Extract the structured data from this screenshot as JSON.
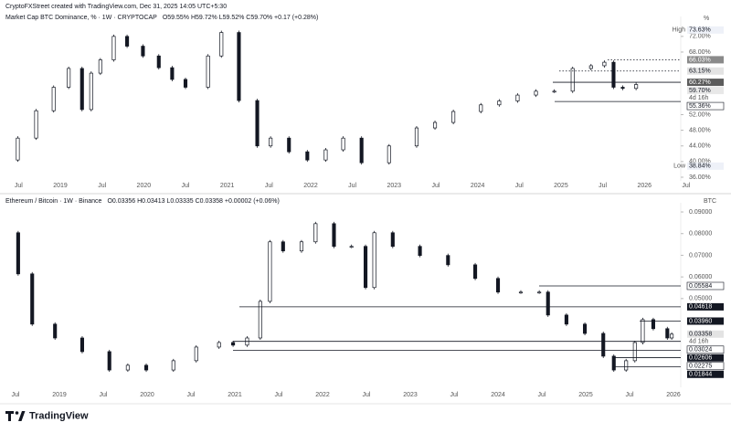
{
  "header": "CryptoFXStreet created with TradingView.com, Dec 31, 2025 14:05 UTC+5:30",
  "footer": "TradingView",
  "chart_data": [
    {
      "type": "candlestick",
      "title": "Market Cap BTC Dominance, % · 1W · CRYPTOCAP",
      "ohlc": "O59.55% H59.72% L59.52% C59.70% +0.17 (+0.28%)",
      "unit": "%",
      "x": [
        2018.33,
        2018.49,
        2018.71,
        2018.92,
        2019.1,
        2019.26,
        2019.37,
        2019.48,
        2019.64,
        2019.8,
        2019.99,
        2020.18,
        2020.34,
        2020.5,
        2020.77,
        2020.93,
        2021.14,
        2021.36,
        2021.52,
        2021.74,
        2021.96,
        2022.18,
        2022.39,
        2022.61,
        2022.94,
        2023.27,
        2023.49,
        2023.71,
        2024.04,
        2024.26,
        2024.48,
        2024.7,
        2024.92,
        2025.14,
        2025.36,
        2025.52,
        2025.63,
        2025.74,
        2025.9
      ],
      "values": [
        40.4,
        46,
        53,
        59,
        63.8,
        53.3,
        62.6,
        66,
        72,
        69.5,
        67,
        64,
        61,
        59,
        67,
        73,
        55.6,
        44,
        46,
        42.5,
        40.4,
        43,
        46,
        39.7,
        44,
        48.6,
        50,
        52.8,
        54.5,
        55.5,
        57,
        58,
        58,
        63.8,
        64.5,
        65.4,
        59,
        58.7,
        59.7
      ],
      "color_up": "#ffffff",
      "color_down": "#131722",
      "xlim": [
        2018.277,
        2026.49
      ],
      "xticks": [
        {
          "value": 2018.5,
          "label": "Jul"
        },
        2019,
        {
          "value": 2019.5,
          "label": "Jul"
        },
        2020,
        {
          "value": 2020.5,
          "label": "Jul"
        },
        2021,
        {
          "value": 2021.5,
          "label": "Jul"
        },
        2022,
        {
          "value": 2022.5,
          "label": "Jul"
        },
        2023,
        {
          "value": 2023.5,
          "label": "Jul"
        },
        2024,
        {
          "value": 2024.5,
          "label": "Jul"
        },
        2025,
        {
          "value": 2025.5,
          "label": "Jul"
        },
        2026,
        {
          "value": 2026.5,
          "label": "Jul"
        }
      ],
      "ylim": [
        36,
        75.7
      ],
      "yticks": [
        {
          "value": 72,
          "label": "72.00%"
        },
        {
          "value": 68,
          "label": "68.00%"
        },
        {
          "value": 52,
          "label": "52.00%"
        },
        {
          "value": 48,
          "label": "48.00%"
        },
        {
          "value": 44,
          "label": "44.00%"
        },
        {
          "value": 40,
          "label": "40.00%"
        },
        {
          "value": 36,
          "label": "36.00%"
        }
      ],
      "grid": false,
      "levels": [
        {
          "value": 73.63,
          "label": "73.63%",
          "tag": "High",
          "bg": "#eef1f8",
          "line": "none"
        },
        {
          "value": 66.03,
          "label": "66.03%",
          "bg": "#8a8a8a",
          "line": "dotted"
        },
        {
          "value": 63.15,
          "label": "63.15%",
          "bg": "#e3e3e3",
          "line": "dotted"
        },
        {
          "value": 60.27,
          "label": "60.27%",
          "bg": "#5c5c5c",
          "line": "solid"
        },
        {
          "value": 59.7,
          "label": "59.70%",
          "tag": "4d 16h",
          "bg": "#e8e8e8",
          "line": "none"
        },
        {
          "value": 55.36,
          "label": "55.36%",
          "bg": "#ffffff",
          "line": "solid"
        },
        {
          "value": 38.84,
          "label": "38.84%",
          "tag": "Low",
          "bg": "#eef1f8",
          "line": "none"
        }
      ]
    },
    {
      "type": "candlestick",
      "title": "Ethereum / Bitcoin · 1W · Binance",
      "ohlc": "O0.03356 H0.03413 L0.03335 C0.03358 +0.00002 (+0.06%)",
      "unit": "BTC",
      "x": [
        2018.375,
        2018.53,
        2018.69,
        2018.95,
        2019.26,
        2019.57,
        2019.78,
        2019.99,
        2020.3,
        2020.56,
        2020.82,
        2020.98,
        2021.14,
        2021.29,
        2021.4,
        2021.55,
        2021.76,
        2021.92,
        2022.13,
        2022.33,
        2022.49,
        2022.59,
        2022.8,
        2023.11,
        2023.43,
        2023.74,
        2024.0,
        2024.26,
        2024.47,
        2024.57,
        2024.78,
        2024.99,
        2025.2,
        2025.32,
        2025.46,
        2025.56,
        2025.65,
        2025.77,
        2025.93,
        2025.98
      ],
      "values": [
        0.0804,
        0.0614,
        0.0382,
        0.0318,
        0.0255,
        0.017,
        0.0192,
        0.017,
        0.0213,
        0.0276,
        0.0297,
        0.0285,
        0.0318,
        0.0487,
        0.0762,
        0.072,
        0.0762,
        0.0846,
        0.0741,
        0.0741,
        0.0551,
        0.0804,
        0.0741,
        0.0699,
        0.0656,
        0.0593,
        0.053,
        0.053,
        0.053,
        0.0424,
        0.0382,
        0.0339,
        0.0234,
        0.017,
        0.0213,
        0.0297,
        0.0403,
        0.0361,
        0.0318,
        0.03358
      ],
      "color_up": "#ffffff",
      "color_down": "#131722",
      "xlim": [
        2018.323,
        2026.083
      ],
      "xticks": [
        {
          "value": 2018.5,
          "label": "Jul"
        },
        2019,
        {
          "value": 2019.5,
          "label": "Jul"
        },
        2020,
        {
          "value": 2020.5,
          "label": "Jul"
        },
        2021,
        {
          "value": 2021.5,
          "label": "Jul"
        },
        2022,
        {
          "value": 2022.5,
          "label": "Jul"
        },
        2023,
        {
          "value": 2023.5,
          "label": "Jul"
        },
        2024,
        {
          "value": 2024.5,
          "label": "Jul"
        },
        2025,
        {
          "value": 2025.5,
          "label": "Jul"
        },
        2026
      ],
      "ylim": [
        0.0107,
        0.0917
      ],
      "yticks": [
        {
          "value": 0.09,
          "label": "0.09000"
        },
        {
          "value": 0.08,
          "label": "0.08000"
        },
        {
          "value": 0.07,
          "label": "0.07000"
        },
        {
          "value": 0.06,
          "label": "0.06000"
        },
        {
          "value": 0.05,
          "label": "0.05000"
        }
      ],
      "grid": false,
      "levels": [
        {
          "value": 0.05584,
          "label": "0.05584",
          "bg": "#ffffff",
          "line": "solid"
        },
        {
          "value": 0.04618,
          "label": "0.04618",
          "bg": "#131722",
          "line": "solid"
        },
        {
          "value": 0.0396,
          "label": "0.03960",
          "bg": "#131722",
          "line": "solid"
        },
        {
          "value": 0.03358,
          "label": "0.03358",
          "tag": "4d 16h",
          "bg": "#e3e3e3",
          "line": "none"
        },
        {
          "value": 0.03024,
          "label": "0.03024",
          "bg": "#ffffff",
          "line": "solid"
        },
        {
          "value": 0.02606,
          "label": "0.02606",
          "bg": "#131722",
          "line": "solid"
        },
        {
          "value": 0.02275,
          "label": "0.02275",
          "bg": "#ffffff",
          "line": "solid"
        },
        {
          "value": 0.01844,
          "label": "0.01844",
          "bg": "#131722",
          "line": "solid"
        }
      ]
    }
  ]
}
